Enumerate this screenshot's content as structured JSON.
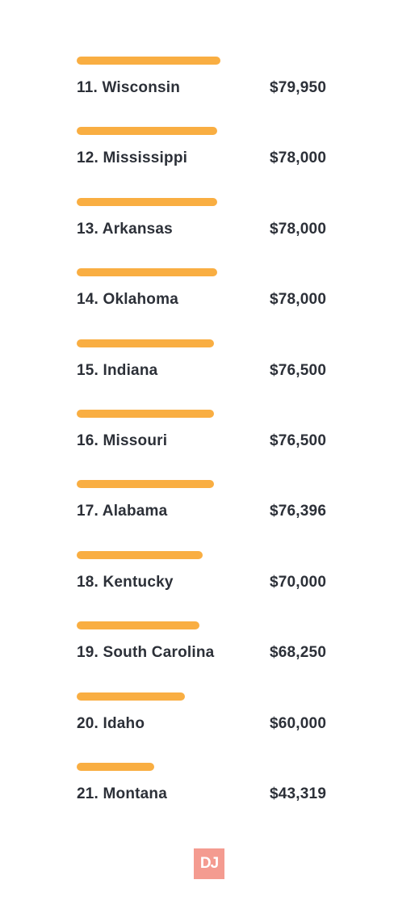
{
  "chart_data": {
    "type": "bar",
    "orientation": "horizontal",
    "categories": [
      "11. Wisconsin",
      "12. Mississippi",
      "13. Arkansas",
      "14. Oklahoma",
      "15. Indiana",
      "16. Missouri",
      "17. Alabama",
      "18. Kentucky",
      "19. South Carolina",
      "20. Idaho",
      "21. Montana"
    ],
    "values": [
      79950,
      78000,
      78000,
      78000,
      76500,
      76500,
      76396,
      70000,
      68250,
      60000,
      43319
    ],
    "value_labels": [
      "$79,950",
      "$78,000",
      "$78,000",
      "$78,000",
      "$76,500",
      "$76,500",
      "$76,396",
      "$70,000",
      "$68,250",
      "$60,000",
      "$43,319"
    ],
    "bar_color": "#F9AE42",
    "text_color": "#2c3038",
    "grid": false,
    "legend": "none"
  },
  "logo": {
    "text": "DJ",
    "color": "#F49B90"
  }
}
